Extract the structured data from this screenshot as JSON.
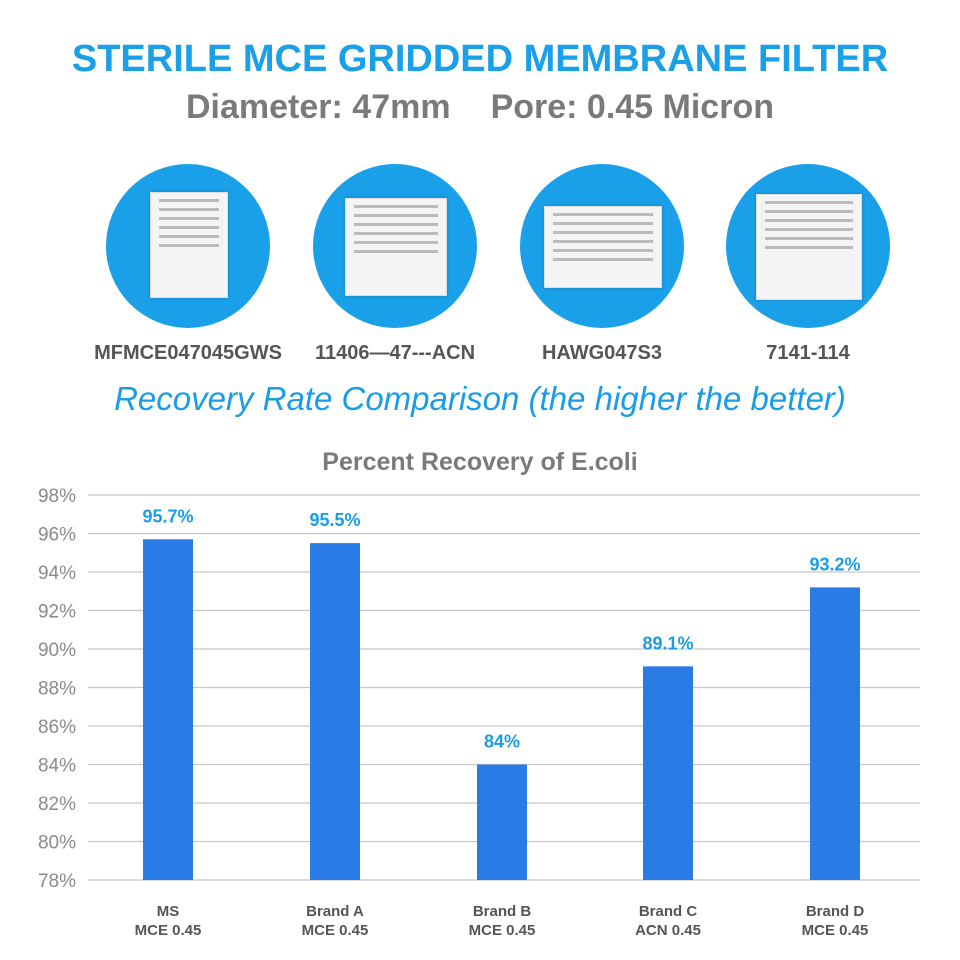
{
  "header": {
    "title": "STERILE MCE GRIDDED MEMBRANE FILTER",
    "diameter": "Diameter: 47mm",
    "pore": "Pore: 0.45 Micron"
  },
  "products": [
    {
      "code": "MFMCE047045GWS",
      "image": "product-box-ms"
    },
    {
      "code": "11406—47---ACN",
      "image": "product-box-brand-a"
    },
    {
      "code": "HAWG047S3",
      "image": "product-box-brand-b"
    },
    {
      "code": "7141-114",
      "image": "product-box-brand-d"
    }
  ],
  "comparison_heading": "Recovery Rate Comparison (the higher the better)",
  "colors": {
    "accent": "#1aa0e8",
    "bar": "#2b7be6",
    "label": "#1a9de6"
  },
  "chart_data": {
    "type": "bar",
    "title": "Percent Recovery of E.coli",
    "categories": [
      [
        "MS",
        "MCE 0.45"
      ],
      [
        "Brand A",
        "MCE 0.45"
      ],
      [
        "Brand B",
        "MCE 0.45"
      ],
      [
        "Brand C",
        "ACN 0.45"
      ],
      [
        "Brand D",
        "MCE 0.45"
      ]
    ],
    "values": [
      95.7,
      95.5,
      84,
      89.1,
      93.2
    ],
    "data_labels": [
      "95.7%",
      "95.5%",
      "84%",
      "89.1%",
      "93.2%"
    ],
    "ylim": [
      78,
      98
    ],
    "yticks": [
      "78%",
      "80%",
      "82%",
      "84%",
      "86%",
      "88%",
      "90%",
      "92%",
      "94%",
      "96%",
      "98%"
    ],
    "grid": true,
    "xlabel": "",
    "ylabel": ""
  }
}
